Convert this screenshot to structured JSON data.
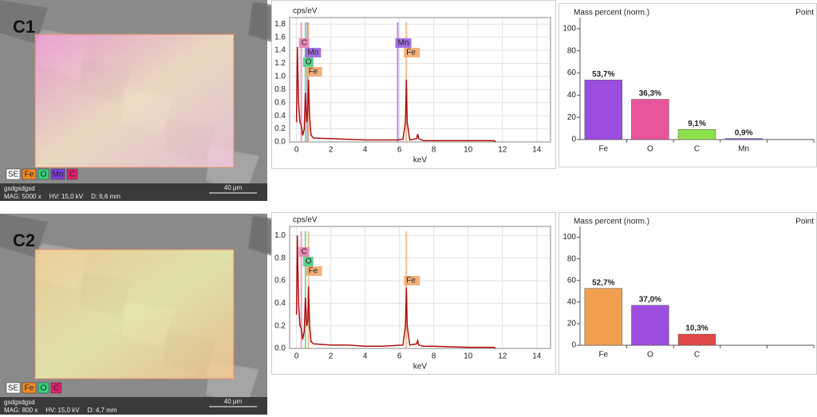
{
  "images": [
    {
      "label": "C1",
      "legend": [
        {
          "text": "SE",
          "color": "#ffffff"
        },
        {
          "text": "Fe",
          "color": "#f08a24"
        },
        {
          "text": "O",
          "color": "#38d07a"
        },
        {
          "text": "Mn",
          "color": "#7a3fd8"
        },
        {
          "text": "C",
          "color": "#e0206a"
        }
      ],
      "name": "gsdgsdgsd",
      "info": [
        "MAG: 5000 x",
        "HV: 15,0 kV",
        "D: 6,6 mm"
      ],
      "scale": "40 µm"
    },
    {
      "label": "C2",
      "legend": [
        {
          "text": "SE",
          "color": "#ffffff"
        },
        {
          "text": "Fe",
          "color": "#f08a24"
        },
        {
          "text": "O",
          "color": "#38d07a"
        },
        {
          "text": "C",
          "color": "#e0206a"
        }
      ],
      "name": "gsdgsdgsd",
      "info": [
        "MAG: 800 x",
        "HV: 15,0 kV",
        "D: 4,7 mm"
      ],
      "scale": "40 µm"
    }
  ],
  "chart_data": [
    {
      "type": "line",
      "y_label": "cps/eV",
      "x_label": "keV",
      "x": [
        0,
        0.05,
        0.12,
        0.2,
        0.28,
        0.36,
        0.45,
        0.52,
        0.6,
        0.66,
        0.7,
        0.76,
        0.85,
        1,
        2,
        3,
        4,
        5,
        5.9,
        6.2,
        6.35,
        6.4,
        6.45,
        6.6,
        7,
        7.06,
        7.12,
        7.4,
        8,
        10,
        11.5,
        11.6
      ],
      "series": [
        {
          "color": "#b01010",
          "values": [
            0.3,
            1.45,
            0.6,
            0.3,
            0.25,
            0.1,
            0.2,
            0.75,
            0.3,
            0.5,
            0.95,
            0.4,
            0.1,
            0.06,
            0.05,
            0.04,
            0.03,
            0.03,
            0.03,
            0.04,
            0.3,
            0.95,
            0.3,
            0.03,
            0.05,
            0.12,
            0.05,
            0.02,
            0.02,
            0.02,
            0.02,
            0
          ]
        }
      ],
      "peak_labels": [
        {
          "label": "C",
          "energy": 0.28,
          "color": "#e88ab8"
        },
        {
          "label": "Mn",
          "energy": 0.64,
          "color": "#a070e0"
        },
        {
          "label": "O",
          "energy": 0.52,
          "color": "#60d090"
        },
        {
          "label": "Fe",
          "energy": 0.7,
          "color": "#f2b07a"
        },
        {
          "label": "Mn",
          "energy": 5.9,
          "color": "#a070e0"
        },
        {
          "label": "Fe",
          "energy": 6.4,
          "color": "#f2b07a"
        }
      ],
      "xlim": [
        -0.4,
        14.8
      ],
      "ylim": [
        0,
        1.9
      ],
      "xticks": [
        0,
        2,
        4,
        6,
        8,
        10,
        12,
        14
      ],
      "yticks": [
        {
          "value": 0,
          "label": "0.0"
        },
        0.2,
        0.4,
        0.6,
        0.8,
        {
          "value": 1,
          "label": "1.0"
        },
        1.2,
        1.4,
        1.6,
        1.8
      ],
      "grid": true
    },
    {
      "type": "bar",
      "title": "Mass percent (norm.)",
      "subtitle": "Point",
      "categories": [
        "Fe",
        "O",
        "C",
        "Mn",
        null
      ],
      "values": [
        53.7,
        36.3,
        9.1,
        0.9,
        null
      ],
      "value_labels": [
        "53,7%",
        "36,3%",
        "9,1%",
        "0,9%",
        null
      ],
      "colors": [
        "#9b4de0",
        "#e8559a",
        "#8ee04a",
        "#7a3fd8",
        null
      ],
      "ylim": [
        0,
        110
      ],
      "yticks": [
        0,
        20,
        40,
        60,
        80,
        100
      ]
    },
    {
      "type": "line",
      "y_label": "cps/eV",
      "x_label": "keV",
      "x": [
        0,
        0.05,
        0.12,
        0.2,
        0.28,
        0.36,
        0.45,
        0.52,
        0.6,
        0.66,
        0.7,
        0.76,
        0.85,
        1,
        2,
        3,
        4,
        5,
        6.2,
        6.35,
        6.4,
        6.45,
        6.6,
        7,
        7.06,
        7.12,
        7.4,
        8,
        10,
        11.5,
        11.6
      ],
      "series": [
        {
          "color": "#b01010",
          "values": [
            0.3,
            1.0,
            0.4,
            0.2,
            0.18,
            0.08,
            0.15,
            0.45,
            0.2,
            0.25,
            0.55,
            0.2,
            0.06,
            0.04,
            0.03,
            0.03,
            0.02,
            0.02,
            0.03,
            0.2,
            0.54,
            0.2,
            0.03,
            0.04,
            0.07,
            0.03,
            0.02,
            0.02,
            0.01,
            0.01,
            0
          ]
        }
      ],
      "peak_labels": [
        {
          "label": "C",
          "energy": 0.28,
          "color": "#e88ab8"
        },
        {
          "label": "O",
          "energy": 0.52,
          "color": "#60d090"
        },
        {
          "label": "Fe",
          "energy": 0.7,
          "color": "#f2b07a"
        },
        {
          "label": "Fe",
          "energy": 6.4,
          "color": "#f2b07a"
        }
      ],
      "xlim": [
        -0.4,
        14.8
      ],
      "ylim": [
        0,
        1.08
      ],
      "xticks": [
        0,
        2,
        4,
        6,
        8,
        10,
        12,
        14
      ],
      "yticks": [
        {
          "value": 0,
          "label": "0.0"
        },
        0.2,
        0.4,
        0.6,
        0.8,
        {
          "value": 1,
          "label": "1.0"
        }
      ],
      "grid": true
    },
    {
      "type": "bar",
      "title": "Mass percent (norm.)",
      "subtitle": "Point",
      "categories": [
        "Fe",
        "O",
        "C",
        null,
        null
      ],
      "values": [
        52.7,
        37.0,
        10.3,
        null,
        null
      ],
      "value_labels": [
        "52,7%",
        "37,0%",
        "10,3%",
        null,
        null
      ],
      "colors": [
        "#f0a050",
        "#9b4de0",
        "#e04848",
        null,
        null
      ],
      "ylim": [
        0,
        110
      ],
      "yticks": [
        0,
        20,
        40,
        60,
        80,
        100
      ]
    }
  ]
}
